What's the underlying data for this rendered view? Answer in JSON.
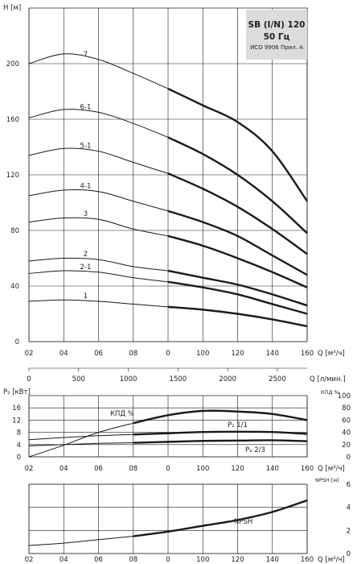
{
  "header_box": {
    "title": "SB (I/N) 120",
    "freq": "50 Гц",
    "note": "ИСО 9906 Прил. А",
    "bg": "#dcdcdc"
  },
  "chart_data": [
    {
      "id": "head",
      "type": "line",
      "ylabel": "H [м]",
      "xlabel": "Q [м³/ч]",
      "x_tick_labels": [
        "02",
        "04",
        "06",
        "08",
        "0",
        "100",
        "120",
        "140",
        "160"
      ],
      "yticks": [
        0,
        40,
        80,
        120,
        160,
        200
      ],
      "ylim": [
        0,
        240
      ],
      "series": [
        {
          "name": "7",
          "x": [
            0,
            20,
            40,
            60,
            80,
            100,
            120,
            140,
            160
          ],
          "y": [
            200,
            207,
            203,
            193,
            182,
            170,
            158,
            137,
            101
          ],
          "bold_from": 80
        },
        {
          "name": "6-1",
          "x": [
            0,
            20,
            40,
            60,
            80,
            100,
            120,
            140,
            160
          ],
          "y": [
            161,
            167,
            165,
            157,
            147,
            135,
            120,
            101,
            78
          ],
          "bold_from": 80
        },
        {
          "name": "5-1",
          "x": [
            0,
            20,
            40,
            60,
            80,
            100,
            120,
            140,
            160
          ],
          "y": [
            134,
            139,
            137,
            129,
            121,
            110,
            97,
            81,
            63
          ],
          "bold_from": 80
        },
        {
          "name": "4-1",
          "x": [
            0,
            20,
            40,
            60,
            80,
            100,
            120,
            140,
            160
          ],
          "y": [
            105,
            109,
            108,
            101,
            94,
            86,
            76,
            62,
            48
          ],
          "bold_from": 80
        },
        {
          "name": "3",
          "x": [
            0,
            20,
            40,
            60,
            80,
            100,
            120,
            140,
            160
          ],
          "y": [
            86,
            89,
            88,
            81,
            76,
            69,
            60,
            50,
            39
          ],
          "bold_from": 80
        },
        {
          "name": "2",
          "x": [
            0,
            20,
            40,
            60,
            80,
            100,
            120,
            140,
            160
          ],
          "y": [
            58,
            60,
            59,
            54,
            51,
            46,
            41,
            34,
            26
          ],
          "bold_from": 80
        },
        {
          "name": "2-1",
          "x": [
            0,
            20,
            40,
            60,
            80,
            100,
            120,
            140,
            160
          ],
          "y": [
            49,
            51,
            50,
            46,
            43,
            39,
            34,
            27,
            20
          ],
          "bold_from": 80
        },
        {
          "name": "1",
          "x": [
            0,
            20,
            40,
            60,
            80,
            100,
            120,
            140,
            160
          ],
          "y": [
            29,
            30,
            29,
            27,
            25,
            23,
            20,
            16,
            11
          ],
          "bold_from": 80
        }
      ]
    },
    {
      "id": "flow_lpm",
      "type": "axis",
      "xlabel": "Q [л/мин.]",
      "ticks": [
        0,
        500,
        1000,
        1500,
        2000,
        2500
      ],
      "xlim": [
        0,
        2800
      ]
    },
    {
      "id": "power",
      "type": "line",
      "ylabel": "P₂ [кВт]",
      "ylabel_right": "КПД %",
      "xlabel": "Q [м³/ч]",
      "x_tick_labels": [
        "02",
        "04",
        "06",
        "08",
        "0",
        "100",
        "120",
        "140",
        "160"
      ],
      "yticks": [
        0,
        4,
        8,
        12,
        16
      ],
      "ylim": [
        0,
        20
      ],
      "yticks_right": [
        0,
        20,
        40,
        60,
        80,
        100
      ],
      "ylim_right": [
        0,
        100
      ],
      "series": [
        {
          "name": "КПД %",
          "axis": "right",
          "x": [
            0,
            20,
            40,
            60,
            80,
            100,
            120,
            140,
            160
          ],
          "y": [
            0,
            19,
            40,
            55,
            68,
            75,
            74,
            70,
            60
          ],
          "bold_from": 60
        },
        {
          "name": "P₂ 1/1",
          "axis": "left",
          "x": [
            0,
            20,
            40,
            60,
            80,
            100,
            120,
            140,
            160
          ],
          "y": [
            5.6,
            6.3,
            6.9,
            7.3,
            7.7,
            8.1,
            8.2,
            8.1,
            7.5
          ],
          "bold_from": 60
        },
        {
          "name": "P₂ 2/3",
          "axis": "left",
          "x": [
            0,
            20,
            40,
            60,
            80,
            100,
            120,
            140,
            160
          ],
          "y": [
            3.6,
            4.0,
            4.4,
            4.6,
            4.9,
            5.2,
            5.3,
            5.4,
            5.1
          ],
          "bold_from": 60
        }
      ]
    },
    {
      "id": "npsh",
      "type": "line",
      "ylabel_right": "NPSH [м]",
      "xlabel": "Q [м³/ч]",
      "x_tick_labels": [
        "02",
        "04",
        "06",
        "08",
        "0",
        "100",
        "120",
        "140",
        "160"
      ],
      "yticks_right": [
        0,
        2,
        4,
        6
      ],
      "ylim_right": [
        0,
        6
      ],
      "series": [
        {
          "name": "NPSH",
          "x": [
            0,
            20,
            40,
            60,
            80,
            100,
            120,
            140,
            160
          ],
          "y": [
            0.7,
            0.9,
            1.2,
            1.5,
            1.9,
            2.4,
            2.9,
            3.6,
            4.6
          ],
          "bold_from": 60
        }
      ]
    }
  ]
}
